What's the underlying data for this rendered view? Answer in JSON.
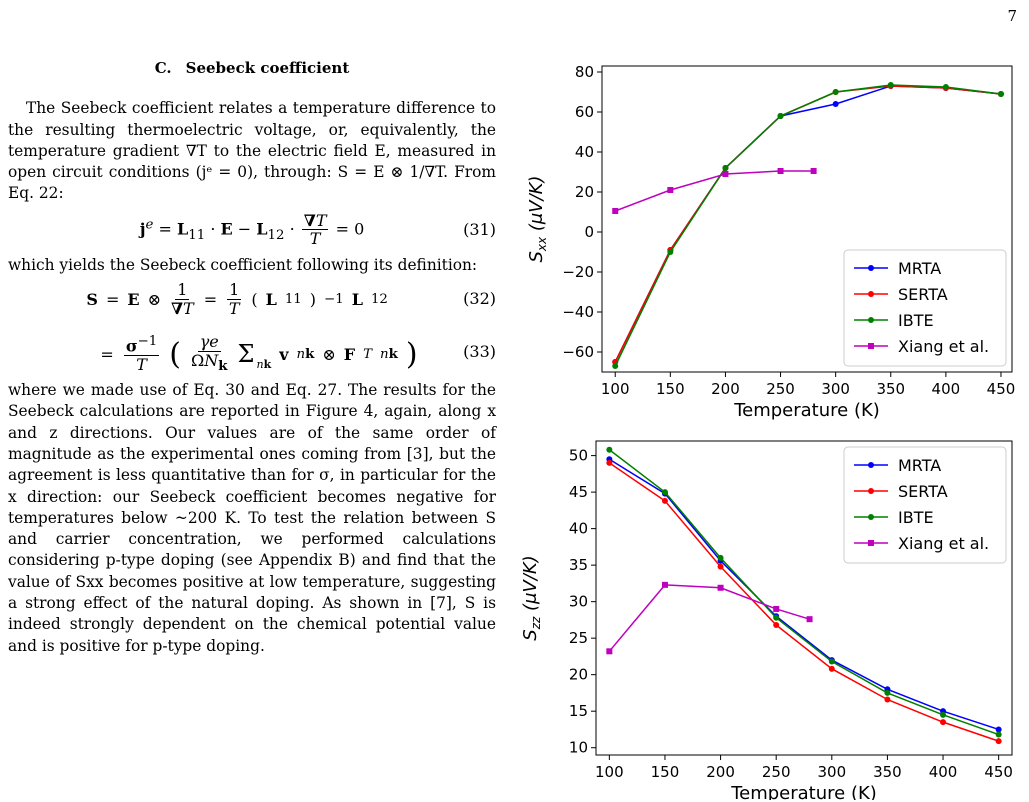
{
  "page_number": "7",
  "section": {
    "number": "C.",
    "title": "Seebeck coefficient"
  },
  "paragraphs": {
    "p1": "The Seebeck coefficient relates a temperature difference to the resulting thermoelectric voltage, or, equivalently, the temperature gradient ∇T to the electric field E, measured in open circuit conditions (jᵉ = 0), through: S = E ⊗ 1/∇T. From Eq. 22:",
    "p2": "which yields the Seebeck coefficient following its definition:",
    "p3": "where we made use of Eq. 30 and Eq. 27. The results for the Seebeck calculations are reported in Figure 4, again, along x and z directions. Our values are of the same order of magnitude as the experimental ones coming from [3], but the agreement is less quantitative than for σ, in particular for the x direction: our Seebeck coefficient becomes negative for temperatures below ~200 K. To test the relation between S and carrier concentration, we performed calculations considering p-type doping (see Appendix B) and find that the value of Sxx becomes positive at low temperature, suggesting a strong effect of the natural doping. As shown in [7], S is indeed strongly dependent on the chemical potential value and is positive for p-type doping."
  },
  "equations": {
    "eq31_number": "(31)",
    "eq32_number": "(32)",
    "eq33_number": "(33)"
  },
  "chart_data": [
    {
      "type": "line",
      "ylabel": "Sxx (μV/K)",
      "xlabel": "Temperature (K)",
      "xlim": [
        88,
        460
      ],
      "ylim": [
        -70,
        83
      ],
      "xticks": [
        100,
        150,
        200,
        250,
        300,
        350,
        400,
        450
      ],
      "yticks": [
        -60,
        -40,
        -20,
        0,
        20,
        40,
        60,
        80
      ],
      "legend_position": "lower-right",
      "series": [
        {
          "name": "MRTA",
          "color": "#0000ff",
          "marker": "circle",
          "x": [
            100,
            150,
            200,
            250,
            300,
            350,
            400,
            450
          ],
          "y": [
            -65,
            -9,
            32,
            58,
            64,
            73,
            72,
            69
          ]
        },
        {
          "name": "SERTA",
          "color": "#ff0000",
          "marker": "circle",
          "x": [
            100,
            150,
            200,
            250,
            300,
            350,
            400,
            450
          ],
          "y": [
            -65,
            -9,
            32,
            58,
            70,
            73,
            72,
            69
          ]
        },
        {
          "name": "IBTE",
          "color": "#008000",
          "marker": "circle",
          "x": [
            100,
            150,
            200,
            250,
            300,
            350,
            400,
            450
          ],
          "y": [
            -67,
            -10,
            32,
            58,
            70,
            73.5,
            72.5,
            69
          ]
        },
        {
          "name": "Xiang et al.",
          "color": "#bf00bf",
          "marker": "square",
          "x": [
            100,
            150,
            200,
            250,
            280
          ],
          "y": [
            10.5,
            21,
            29,
            30.5,
            30.5
          ]
        }
      ]
    },
    {
      "type": "line",
      "ylabel": "Szz (μV/K)",
      "xlabel": "Temperature (K)",
      "xlim": [
        88,
        462
      ],
      "ylim": [
        9,
        52
      ],
      "xticks": [
        100,
        150,
        200,
        250,
        300,
        350,
        400,
        450
      ],
      "yticks": [
        10,
        15,
        20,
        25,
        30,
        35,
        40,
        45,
        50
      ],
      "legend_position": "upper-right",
      "series": [
        {
          "name": "MRTA",
          "color": "#0000ff",
          "marker": "circle",
          "x": [
            100,
            150,
            200,
            250,
            300,
            350,
            400,
            450
          ],
          "y": [
            49.5,
            44.8,
            35.6,
            28,
            22,
            18,
            15,
            12.5
          ]
        },
        {
          "name": "SERTA",
          "color": "#ff0000",
          "marker": "circle",
          "x": [
            100,
            150,
            200,
            250,
            300,
            350,
            400,
            450
          ],
          "y": [
            49,
            43.8,
            34.8,
            26.8,
            20.8,
            16.6,
            13.5,
            10.9
          ]
        },
        {
          "name": "IBTE",
          "color": "#008000",
          "marker": "circle",
          "x": [
            100,
            150,
            200,
            250,
            300,
            350,
            400,
            450
          ],
          "y": [
            50.8,
            45,
            36,
            27.8,
            21.8,
            17.5,
            14.5,
            11.8
          ]
        },
        {
          "name": "Xiang et al.",
          "color": "#bf00bf",
          "marker": "square",
          "x": [
            100,
            150,
            200,
            250,
            280
          ],
          "y": [
            23.2,
            32.3,
            31.9,
            29,
            27.6
          ]
        }
      ]
    }
  ]
}
